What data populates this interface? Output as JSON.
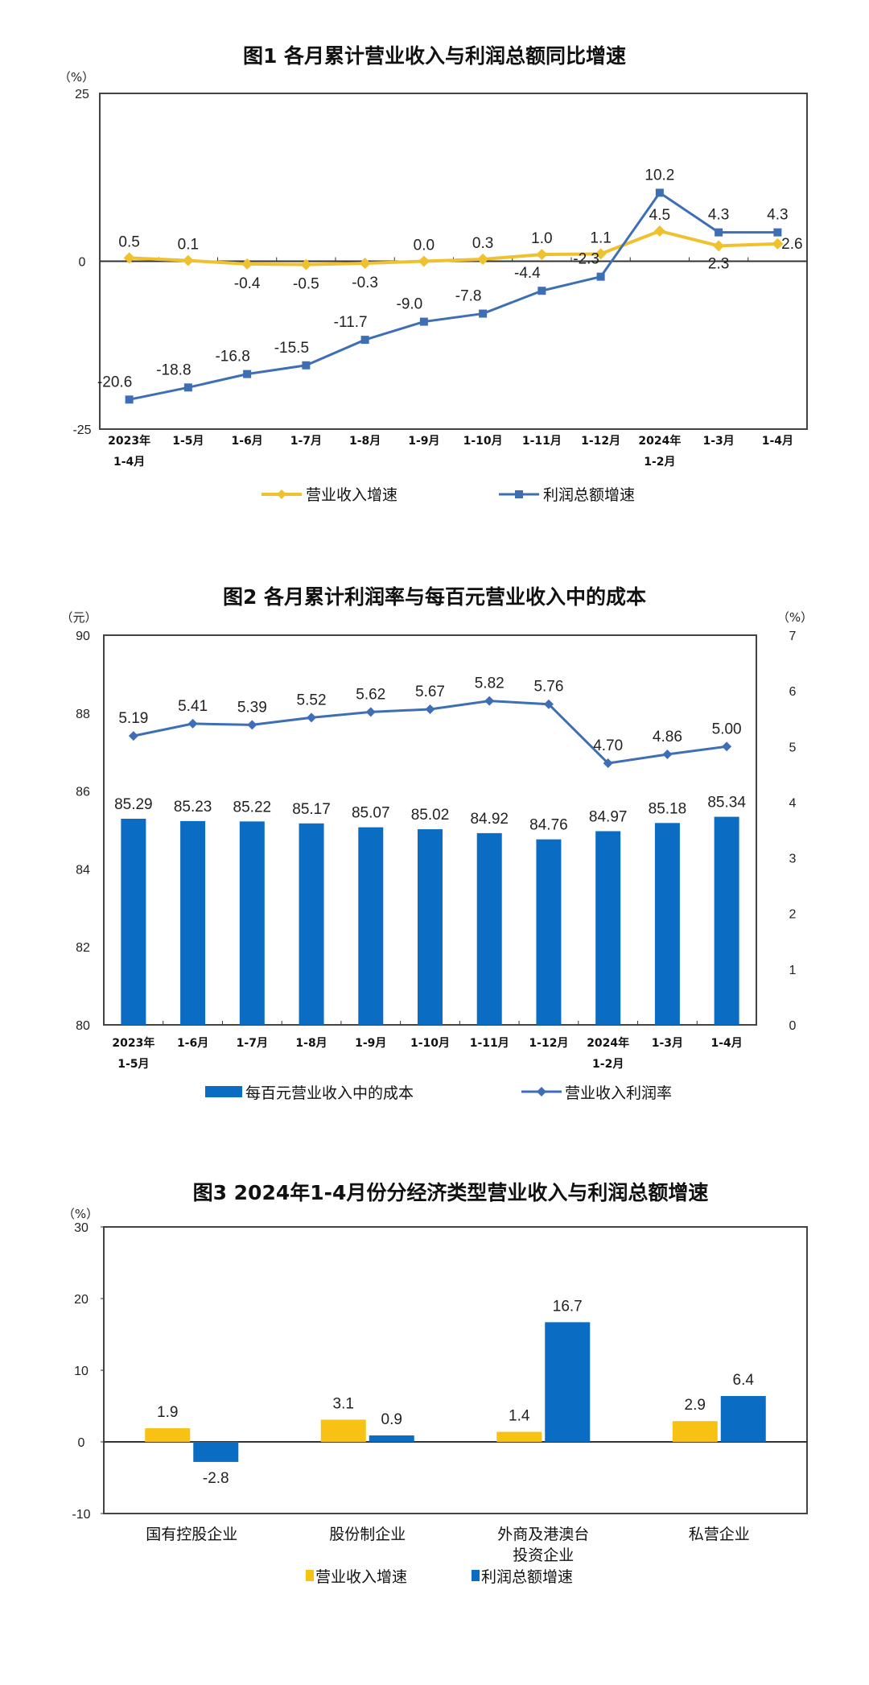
{
  "chart_data": [
    {
      "type": "line",
      "title": "图1  各月累计营业收入与利润总额同比增速",
      "ylabel": "（%）",
      "ylim": [
        -25,
        25
      ],
      "yticks": [
        "25",
        "0",
        "-25"
      ],
      "categories": [
        [
          "2023年",
          "1-4月"
        ],
        [
          "1-5月"
        ],
        [
          "1-6月"
        ],
        [
          "1-7月"
        ],
        [
          "1-8月"
        ],
        [
          "1-9月"
        ],
        [
          "1-10月"
        ],
        [
          "1-11月"
        ],
        [
          "1-12月"
        ],
        [
          "2024年",
          "1-2月"
        ],
        [
          "1-3月"
        ],
        [
          "1-4月"
        ]
      ],
      "series": [
        {
          "name": "营业收入增速",
          "color": "#F0C12E",
          "values": [
            0.5,
            0.1,
            -0.4,
            -0.5,
            -0.3,
            0.0,
            0.3,
            1.0,
            1.1,
            4.5,
            2.3,
            2.6
          ],
          "labels": [
            "0.5",
            "0.1",
            "-0.4",
            "-0.5",
            "-0.3",
            "0.0",
            "0.3",
            "1.0",
            "1.1",
            "4.5",
            "2.3",
            "2.6"
          ]
        },
        {
          "name": "利润总额增速",
          "color": "#3E6EB4",
          "values": [
            -20.6,
            -18.8,
            -16.8,
            -15.5,
            -11.7,
            -9.0,
            -7.8,
            -4.4,
            -2.3,
            10.2,
            4.3,
            4.3
          ],
          "labels": [
            "-20.6",
            "-18.8",
            "-16.8",
            "-15.5",
            "-11.7",
            "-9.0",
            "-7.8",
            "-4.4",
            "-2.3",
            "10.2",
            "4.3",
            "4.3"
          ]
        }
      ],
      "grid": false,
      "legend": "bottom"
    },
    {
      "type": "bar+line",
      "title": "图2  各月累计利润率与每百元营业收入中的成本",
      "ylabel_left": "（元）",
      "ylabel_right": "（%）",
      "ylim_left": [
        80,
        90
      ],
      "ylim_right": [
        0,
        7
      ],
      "yticks_left": [
        "90",
        "88",
        "86",
        "84",
        "82",
        "80"
      ],
      "yticks_right": [
        "7",
        "6",
        "5",
        "4",
        "3",
        "2",
        "1",
        "0"
      ],
      "categories": [
        [
          "2023年",
          "1-5月"
        ],
        [
          "1-6月"
        ],
        [
          "1-7月"
        ],
        [
          "1-8月"
        ],
        [
          "1-9月"
        ],
        [
          "1-10月"
        ],
        [
          "1-11月"
        ],
        [
          "1-12月"
        ],
        [
          "2024年",
          "1-2月"
        ],
        [
          "1-3月"
        ],
        [
          "1-4月"
        ]
      ],
      "series": [
        {
          "name": "每百元营业收入中的成本",
          "axis": "left",
          "kind": "bar",
          "color": "#0B6CC4",
          "values": [
            85.29,
            85.23,
            85.22,
            85.17,
            85.07,
            85.02,
            84.92,
            84.76,
            84.97,
            85.18,
            85.34
          ],
          "labels": [
            "85.29",
            "85.23",
            "85.22",
            "85.17",
            "85.07",
            "85.02",
            "84.92",
            "84.76",
            "84.97",
            "85.18",
            "85.34"
          ]
        },
        {
          "name": "营业收入利润率",
          "axis": "right",
          "kind": "line",
          "color": "#3E6EB4",
          "values": [
            5.19,
            5.41,
            5.39,
            5.52,
            5.62,
            5.67,
            5.82,
            5.76,
            4.7,
            4.86,
            5.0
          ],
          "labels": [
            "5.19",
            "5.41",
            "5.39",
            "5.52",
            "5.62",
            "5.67",
            "5.82",
            "5.76",
            "4.70",
            "4.86",
            "5.00"
          ]
        }
      ],
      "grid": false,
      "legend": "bottom"
    },
    {
      "type": "bar",
      "title": "图3  2024年1-4月份分经济类型营业收入与利润总额增速",
      "ylabel": "（%）",
      "ylim": [
        -10,
        30
      ],
      "yticks": [
        "30",
        "20",
        "10",
        "0",
        "-10"
      ],
      "categories": [
        [
          "国有控股企业"
        ],
        [
          "股份制企业"
        ],
        [
          "外商及港澳台",
          "投资企业"
        ],
        [
          "私营企业"
        ]
      ],
      "series": [
        {
          "name": "营业收入增速",
          "color": "#F7C214",
          "values": [
            1.9,
            3.1,
            1.4,
            2.9
          ],
          "labels": [
            "1.9",
            "3.1",
            "1.4",
            "2.9"
          ]
        },
        {
          "name": "利润总额增速",
          "color": "#0B6CC4",
          "values": [
            -2.8,
            0.9,
            16.7,
            6.4
          ],
          "labels": [
            "-2.8",
            "0.9",
            "16.7",
            "6.4"
          ]
        }
      ],
      "grid": false,
      "legend": "bottom"
    }
  ]
}
